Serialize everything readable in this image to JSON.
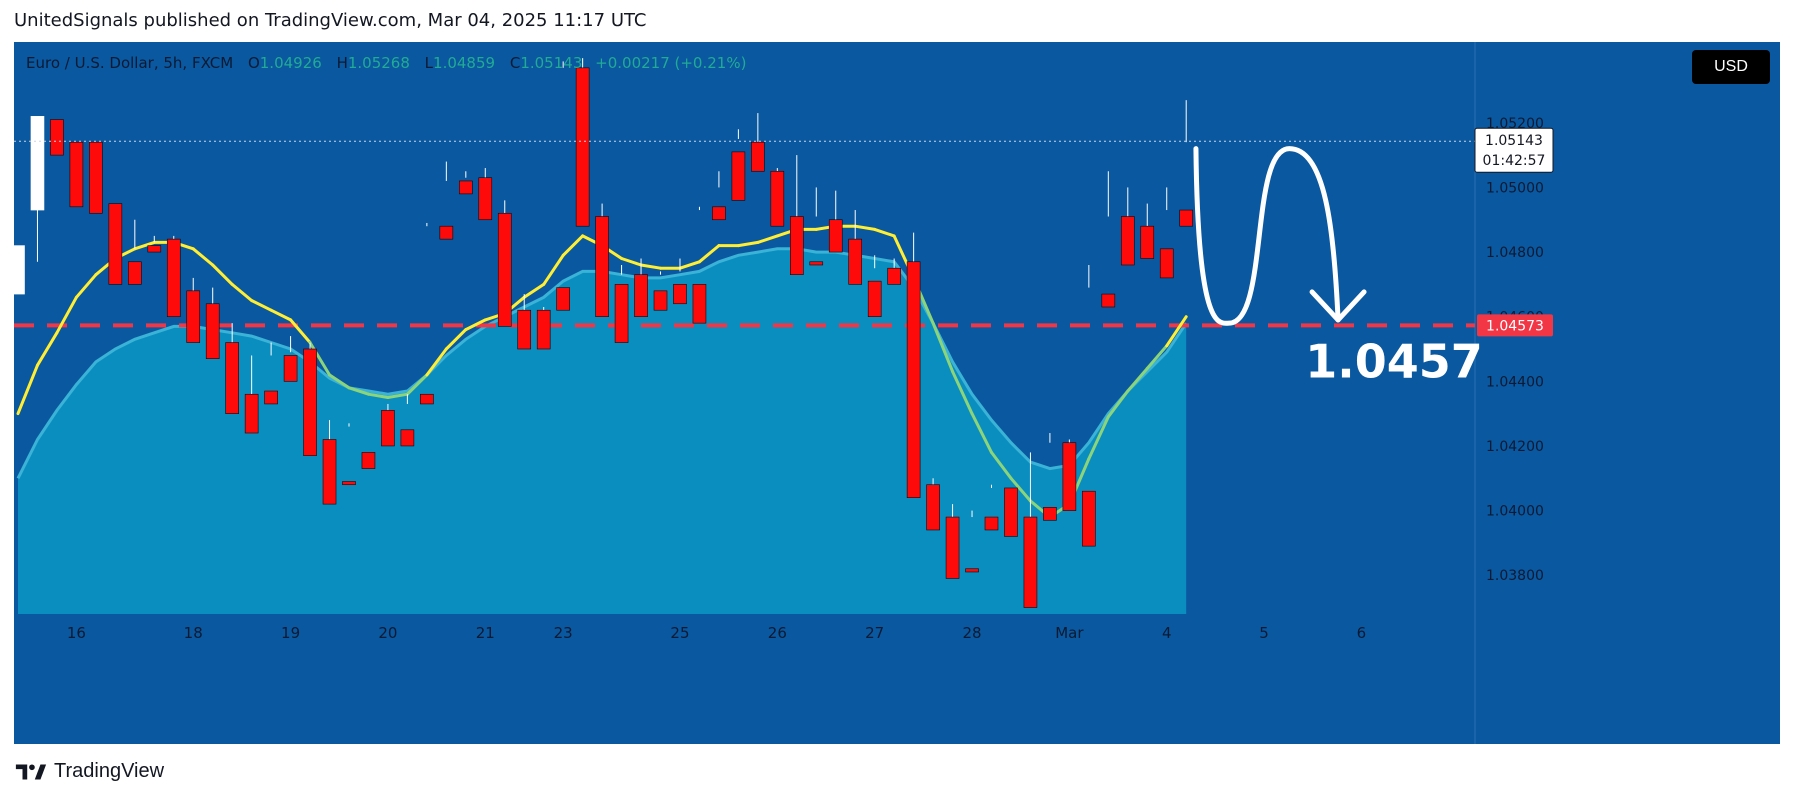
{
  "header": {
    "publish_line": "UnitedSignals published on TradingView.com, Mar 04, 2025 11:17 UTC"
  },
  "legend": {
    "symbol": "Euro / U.S. Dollar, 5h, FXCM",
    "o_label": "O",
    "o_value": "1.04926",
    "h_label": "H",
    "h_value": "1.05268",
    "l_label": "L",
    "l_value": "1.04859",
    "c_label": "C",
    "c_value": "1.05143",
    "change": "+0.00217 (+0.21%)"
  },
  "currency_button": "USD",
  "footer": {
    "brand": "TradingView"
  },
  "colors": {
    "background": "#0a58a0",
    "up_candle": "#ffffff",
    "down_candle": "#ff0a0a",
    "ma_fast": "#ffee33",
    "ma_fast_below": "#8cd47a",
    "area_fill": "#0a8ec0",
    "support_line": "#f23645",
    "text_dark": "#0b1a33"
  },
  "chart_data": {
    "type": "candlestick",
    "symbol": "EURUSD",
    "timeframe": "5h",
    "ylim": [
      1.0368,
      1.0545
    ],
    "y_ticks": [
      1.038,
      1.04,
      1.042,
      1.044,
      1.046,
      1.048,
      1.05,
      1.052
    ],
    "y_tick_labels": [
      "1.03800",
      "1.04000",
      "1.04200",
      "1.04400",
      "1.04600",
      "1.04800",
      "1.05000",
      "1.05200"
    ],
    "x_labels": [
      {
        "label": "16",
        "index": 3
      },
      {
        "label": "18",
        "index": 9
      },
      {
        "label": "19",
        "index": 14
      },
      {
        "label": "20",
        "index": 19
      },
      {
        "label": "21",
        "index": 24
      },
      {
        "label": "23",
        "index": 28
      },
      {
        "label": "25",
        "index": 34
      },
      {
        "label": "26",
        "index": 39
      },
      {
        "label": "27",
        "index": 44
      },
      {
        "label": "28",
        "index": 49
      },
      {
        "label": "Mar",
        "index": 54
      },
      {
        "label": "4",
        "index": 59
      },
      {
        "label": "5",
        "index": 64
      },
      {
        "label": "6",
        "index": 69
      }
    ],
    "candles": [
      [
        1.0467,
        1.0476,
        1.047,
        1.0482
      ],
      [
        1.0493,
        1.0521,
        1.0477,
        1.0522
      ],
      [
        1.0521,
        1.0513,
        1.052,
        1.051
      ],
      [
        1.0514,
        1.0497,
        1.0514,
        1.0494
      ],
      [
        1.0514,
        1.0514,
        1.0495,
        1.0492
      ],
      [
        1.0495,
        1.049,
        1.0477,
        1.047
      ],
      [
        1.0477,
        1.049,
        1.0481,
        1.047
      ],
      [
        1.0482,
        1.0485,
        1.0483,
        1.048
      ],
      [
        1.0484,
        1.0485,
        1.0471,
        1.046
      ],
      [
        1.0468,
        1.0472,
        1.0464,
        1.0452
      ],
      [
        1.0464,
        1.0469,
        1.0449,
        1.0447
      ],
      [
        1.0452,
        1.0458,
        1.0435,
        1.043
      ],
      [
        1.0436,
        1.0448,
        1.0436,
        1.0424
      ],
      [
        1.0437,
        1.0452,
        1.0448,
        1.0433
      ],
      [
        1.0448,
        1.0454,
        1.0449,
        1.044
      ],
      [
        1.045,
        1.0452,
        1.0419,
        1.0417
      ],
      [
        1.0422,
        1.0428,
        1.0407,
        1.0402
      ],
      [
        1.0409,
        1.0427,
        1.0426,
        1.0408
      ],
      [
        1.0418,
        1.0431,
        1.0431,
        1.0413
      ],
      [
        1.0431,
        1.0433,
        1.0424,
        1.042
      ],
      [
        1.0425,
        1.0436,
        1.0433,
        1.042
      ],
      [
        1.0436,
        1.0489,
        1.0488,
        1.0433
      ],
      [
        1.0488,
        1.0508,
        1.0502,
        1.0484
      ],
      [
        1.0502,
        1.0505,
        1.0503,
        1.0498
      ],
      [
        1.0503,
        1.0506,
        1.0492,
        1.049
      ],
      [
        1.0492,
        1.0496,
        1.0462,
        1.0457
      ],
      [
        1.0462,
        1.0467,
        1.0461,
        1.045
      ],
      [
        1.0462,
        1.0463,
        1.0452,
        1.045
      ],
      [
        1.0469,
        1.0539,
        1.0537,
        1.0462
      ],
      [
        1.0537,
        1.054,
        1.0491,
        1.0488
      ],
      [
        1.0491,
        1.0495,
        1.047,
        1.046
      ],
      [
        1.047,
        1.0476,
        1.0473,
        1.0452
      ],
      [
        1.0473,
        1.0478,
        1.0468,
        1.046
      ],
      [
        1.0468,
        1.0474,
        1.0473,
        1.0462
      ],
      [
        1.047,
        1.0478,
        1.0474,
        1.0464
      ],
      [
        1.047,
        1.0494,
        1.0493,
        1.0458
      ],
      [
        1.0494,
        1.0505,
        1.05,
        1.049
      ],
      [
        1.0511,
        1.0518,
        1.0515,
        1.0496
      ],
      [
        1.0514,
        1.0523,
        1.051,
        1.0505
      ],
      [
        1.0505,
        1.0506,
        1.0493,
        1.0488
      ],
      [
        1.0491,
        1.051,
        1.0477,
        1.0473
      ],
      [
        1.0477,
        1.05,
        1.0491,
        1.0476
      ],
      [
        1.049,
        1.0499,
        1.0484,
        1.048
      ],
      [
        1.0484,
        1.0493,
        1.0471,
        1.047
      ],
      [
        1.0471,
        1.0479,
        1.0475,
        1.046
      ],
      [
        1.0475,
        1.0478,
        1.0475,
        1.047
      ],
      [
        1.0477,
        1.0486,
        1.0408,
        1.0404
      ],
      [
        1.0408,
        1.041,
        1.0398,
        1.0394
      ],
      [
        1.0398,
        1.0402,
        1.0381,
        1.0379
      ],
      [
        1.0382,
        1.04,
        1.0398,
        1.0381
      ],
      [
        1.0398,
        1.0408,
        1.0407,
        1.0394
      ],
      [
        1.0407,
        1.0407,
        1.0398,
        1.0392
      ],
      [
        1.0398,
        1.0418,
        1.0398,
        1.037
      ],
      [
        1.0401,
        1.0424,
        1.0421,
        1.0397
      ],
      [
        1.0421,
        1.0422,
        1.0406,
        1.04
      ],
      [
        1.0406,
        1.0476,
        1.0469,
        1.0389
      ],
      [
        1.0467,
        1.0505,
        1.0491,
        1.0463
      ],
      [
        1.0491,
        1.05,
        1.0488,
        1.0476
      ],
      [
        1.0488,
        1.0495,
        1.048,
        1.0478
      ],
      [
        1.0481,
        1.05,
        1.0493,
        1.0472
      ],
      [
        1.0493,
        1.0527,
        1.0514,
        1.0488
      ]
    ],
    "ma_fast": [
      1.043,
      1.0445,
      1.0455,
      1.0466,
      1.0473,
      1.0478,
      1.0481,
      1.0483,
      1.0483,
      1.0481,
      1.0476,
      1.047,
      1.0465,
      1.0462,
      1.0459,
      1.0452,
      1.0442,
      1.0438,
      1.0436,
      1.0435,
      1.0436,
      1.0442,
      1.045,
      1.0456,
      1.0459,
      1.0461,
      1.0466,
      1.047,
      1.0479,
      1.0485,
      1.0482,
      1.0478,
      1.0476,
      1.0475,
      1.0475,
      1.0477,
      1.0482,
      1.0482,
      1.0483,
      1.0485,
      1.0487,
      1.0487,
      1.0488,
      1.0488,
      1.0487,
      1.0485,
      1.0472,
      1.0458,
      1.0443,
      1.043,
      1.0418,
      1.041,
      1.0403,
      1.0398,
      1.0402,
      1.0416,
      1.0429,
      1.0437,
      1.0444,
      1.0451,
      1.046
    ],
    "ma_slow": [
      1.041,
      1.0422,
      1.0431,
      1.0439,
      1.0446,
      1.045,
      1.0453,
      1.0455,
      1.0457,
      1.0457,
      1.0456,
      1.0455,
      1.0454,
      1.0452,
      1.045,
      1.0446,
      1.0441,
      1.0438,
      1.0437,
      1.0436,
      1.0437,
      1.0442,
      1.0448,
      1.0453,
      1.0457,
      1.046,
      1.0463,
      1.0466,
      1.0471,
      1.0474,
      1.0474,
      1.0473,
      1.0472,
      1.0472,
      1.0473,
      1.0474,
      1.0477,
      1.0479,
      1.048,
      1.0481,
      1.0481,
      1.048,
      1.048,
      1.0479,
      1.0478,
      1.0477,
      1.0469,
      1.0458,
      1.0446,
      1.0436,
      1.0428,
      1.0421,
      1.0415,
      1.0413,
      1.0414,
      1.0421,
      1.043,
      1.0437,
      1.0443,
      1.0449,
      1.0458
    ],
    "support_level": 1.04573,
    "support_label": "1.04573",
    "target_label": "1.0457",
    "last_price_label": "1.05143",
    "countdown_label": "01:42:57",
    "last_price": 1.05143,
    "projection_path": [
      [
        60.5,
        1.0512
      ],
      [
        62.2,
        1.0458
      ],
      [
        65.3,
        1.0512
      ],
      [
        67.8,
        1.0459
      ]
    ]
  }
}
